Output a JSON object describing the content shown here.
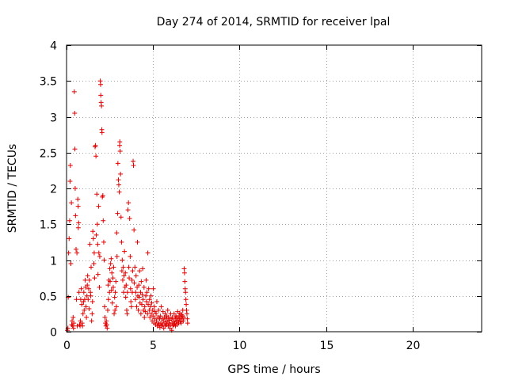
{
  "chart_data": {
    "type": "scatter",
    "title": "Day 274 of 2014, SRMTID for receiver lpal",
    "xlabel": "GPS time / hours",
    "ylabel": "SRMTID / TECUs",
    "xlim": [
      0,
      24
    ],
    "ylim": [
      0,
      4
    ],
    "xticks": [
      0,
      5,
      10,
      15,
      20
    ],
    "xtick_labels": [
      "0",
      "5",
      "10",
      "15",
      "20"
    ],
    "yticks": [
      0,
      0.5,
      1,
      1.5,
      2,
      2.5,
      3,
      3.5,
      4
    ],
    "ytick_labels": [
      "0",
      "0.5",
      "1",
      "1.5",
      "2",
      "2.5",
      "3",
      "3.5",
      "4"
    ],
    "grid": true,
    "marker": "+",
    "series": [
      {
        "name": "SRMTID",
        "color": "#e00000",
        "points": [
          [
            0.05,
            0.02
          ],
          [
            0.08,
            0.05
          ],
          [
            0.1,
            0.48
          ],
          [
            0.12,
            1.1
          ],
          [
            0.15,
            1.3
          ],
          [
            0.18,
            1.55
          ],
          [
            0.2,
            2.1
          ],
          [
            0.22,
            2.32
          ],
          [
            0.25,
            0.95
          ],
          [
            0.28,
            1.8
          ],
          [
            0.3,
            0.1
          ],
          [
            0.32,
            0.15
          ],
          [
            0.35,
            0.08
          ],
          [
            0.38,
            0.2
          ],
          [
            0.4,
            0.05
          ],
          [
            0.42,
            0.12
          ],
          [
            0.45,
            3.35
          ],
          [
            0.47,
            3.05
          ],
          [
            0.48,
            2.55
          ],
          [
            0.5,
            2.0
          ],
          [
            0.52,
            1.62
          ],
          [
            0.55,
            1.15
          ],
          [
            0.57,
            0.45
          ],
          [
            0.6,
            1.1
          ],
          [
            0.62,
            0.08
          ],
          [
            0.65,
            1.85
          ],
          [
            0.67,
            1.75
          ],
          [
            0.68,
            1.45
          ],
          [
            0.7,
            1.52
          ],
          [
            0.72,
            0.55
          ],
          [
            0.75,
            0.1
          ],
          [
            0.78,
            0.08
          ],
          [
            0.8,
            0.15
          ],
          [
            0.82,
            0.45
          ],
          [
            0.85,
            0.6
          ],
          [
            0.88,
            0.38
          ],
          [
            0.9,
            0.12
          ],
          [
            0.92,
            0.08
          ],
          [
            0.95,
            0.25
          ],
          [
            0.98,
            0.42
          ],
          [
            1.0,
            0.55
          ],
          [
            1.02,
            0.3
          ],
          [
            1.05,
            0.45
          ],
          [
            1.08,
            0.72
          ],
          [
            1.1,
            0.62
          ],
          [
            1.12,
            0.35
          ],
          [
            1.15,
            0.2
          ],
          [
            1.18,
            0.5
          ],
          [
            1.2,
            0.65
          ],
          [
            1.22,
            0.78
          ],
          [
            1.25,
            0.45
          ],
          [
            1.28,
            0.6
          ],
          [
            1.3,
            0.32
          ],
          [
            1.32,
            0.72
          ],
          [
            1.35,
            1.22
          ],
          [
            1.38,
            0.55
          ],
          [
            1.4,
            0.5
          ],
          [
            1.42,
            0.9
          ],
          [
            1.45,
            0.15
          ],
          [
            1.48,
            0.25
          ],
          [
            1.5,
            0.42
          ],
          [
            1.52,
            1.4
          ],
          [
            1.55,
            1.3
          ],
          [
            1.58,
            0.95
          ],
          [
            1.6,
            1.1
          ],
          [
            1.62,
            0.75
          ],
          [
            1.65,
            2.58
          ],
          [
            1.67,
            2.6
          ],
          [
            1.7,
            2.45
          ],
          [
            1.72,
            1.35
          ],
          [
            1.75,
            1.92
          ],
          [
            1.78,
            1.5
          ],
          [
            1.8,
            1.22
          ],
          [
            1.82,
            0.8
          ],
          [
            1.85,
            1.75
          ],
          [
            1.87,
            1.1
          ],
          [
            1.9,
            0.62
          ],
          [
            1.92,
            1.05
          ],
          [
            1.95,
            3.5
          ],
          [
            1.97,
            3.45
          ],
          [
            1.98,
            3.3
          ],
          [
            2.0,
            3.2
          ],
          [
            2.02,
            3.15
          ],
          [
            2.04,
            2.82
          ],
          [
            2.05,
            2.78
          ],
          [
            2.07,
            1.88
          ],
          [
            2.1,
            1.9
          ],
          [
            2.12,
            1.55
          ],
          [
            2.15,
            1.25
          ],
          [
            2.18,
            1.0
          ],
          [
            2.2,
            0.35
          ],
          [
            2.22,
            0.2
          ],
          [
            2.25,
            0.12
          ],
          [
            2.28,
            0.08
          ],
          [
            2.3,
            0.15
          ],
          [
            2.32,
            0.1
          ],
          [
            2.35,
            0.05
          ],
          [
            2.38,
            0.3
          ],
          [
            2.4,
            0.65
          ],
          [
            2.42,
            0.45
          ],
          [
            2.45,
            0.72
          ],
          [
            2.48,
            0.55
          ],
          [
            2.5,
            0.88
          ],
          [
            2.52,
            0.7
          ],
          [
            2.55,
            0.95
          ],
          [
            2.58,
            1.02
          ],
          [
            2.6,
            0.58
          ],
          [
            2.62,
            0.82
          ],
          [
            2.65,
            0.4
          ],
          [
            2.68,
            0.75
          ],
          [
            2.7,
            0.62
          ],
          [
            2.72,
            0.9
          ],
          [
            2.75,
            0.25
          ],
          [
            2.78,
            0.48
          ],
          [
            2.8,
            0.3
          ],
          [
            2.82,
            0.55
          ],
          [
            2.85,
            0.7
          ],
          [
            2.88,
            0.35
          ],
          [
            2.9,
            1.38
          ],
          [
            2.92,
            1.05
          ],
          [
            2.95,
            1.65
          ],
          [
            2.97,
            2.35
          ],
          [
            3.0,
            2.12
          ],
          [
            3.02,
            2.05
          ],
          [
            3.05,
            1.95
          ],
          [
            3.07,
            2.6
          ],
          [
            3.08,
            2.65
          ],
          [
            3.1,
            2.52
          ],
          [
            3.12,
            2.2
          ],
          [
            3.15,
            1.6
          ],
          [
            3.18,
            1.25
          ],
          [
            3.2,
            0.85
          ],
          [
            3.22,
            1.0
          ],
          [
            3.25,
            0.72
          ],
          [
            3.28,
            0.9
          ],
          [
            3.3,
            0.55
          ],
          [
            3.32,
            0.78
          ],
          [
            3.35,
            1.12
          ],
          [
            3.38,
            0.62
          ],
          [
            3.4,
            0.82
          ],
          [
            3.42,
            0.48
          ],
          [
            3.45,
            0.65
          ],
          [
            3.48,
            0.3
          ],
          [
            3.5,
            0.25
          ],
          [
            3.52,
            0.55
          ],
          [
            3.55,
            1.7
          ],
          [
            3.58,
            1.8
          ],
          [
            3.6,
            0.9
          ],
          [
            3.62,
            0.75
          ],
          [
            3.65,
            1.58
          ],
          [
            3.68,
            1.05
          ],
          [
            3.7,
            0.6
          ],
          [
            3.72,
            0.42
          ],
          [
            3.75,
            0.35
          ],
          [
            3.78,
            0.72
          ],
          [
            3.8,
            0.55
          ],
          [
            3.82,
            0.85
          ],
          [
            3.85,
            2.38
          ],
          [
            3.87,
            2.32
          ],
          [
            3.9,
            1.42
          ],
          [
            3.92,
            0.68
          ],
          [
            3.95,
            0.9
          ],
          [
            3.98,
            0.45
          ],
          [
            4.0,
            0.55
          ],
          [
            4.02,
            0.78
          ],
          [
            4.05,
            0.35
          ],
          [
            4.08,
            0.62
          ],
          [
            4.1,
            1.25
          ],
          [
            4.12,
            0.5
          ],
          [
            4.15,
            0.3
          ],
          [
            4.18,
            0.65
          ],
          [
            4.2,
            0.48
          ],
          [
            4.22,
            0.85
          ],
          [
            4.25,
            0.4
          ],
          [
            4.28,
            0.55
          ],
          [
            4.3,
            0.25
          ],
          [
            4.32,
            0.7
          ],
          [
            4.35,
            0.38
          ],
          [
            4.38,
            0.52
          ],
          [
            4.4,
            0.88
          ],
          [
            4.42,
            0.45
          ],
          [
            4.45,
            0.3
          ],
          [
            4.48,
            0.62
          ],
          [
            4.5,
            0.2
          ],
          [
            4.52,
            0.35
          ],
          [
            4.55,
            0.28
          ],
          [
            4.58,
            0.5
          ],
          [
            4.6,
            0.72
          ],
          [
            4.62,
            0.42
          ],
          [
            4.65,
            0.55
          ],
          [
            4.68,
            0.25
          ],
          [
            4.7,
            1.1
          ],
          [
            4.72,
            0.38
          ],
          [
            4.75,
            0.6
          ],
          [
            4.78,
            0.3
          ],
          [
            4.8,
            0.45
          ],
          [
            4.82,
            0.2
          ],
          [
            4.85,
            0.35
          ],
          [
            4.88,
            0.5
          ],
          [
            4.9,
            0.25
          ],
          [
            4.92,
            0.4
          ],
          [
            4.95,
            0.15
          ],
          [
            4.98,
            0.3
          ],
          [
            5.0,
            0.22
          ],
          [
            5.02,
            0.6
          ],
          [
            5.05,
            0.12
          ],
          [
            5.08,
            0.35
          ],
          [
            5.1,
            0.18
          ],
          [
            5.12,
            0.28
          ],
          [
            5.15,
            0.1
          ],
          [
            5.18,
            0.25
          ],
          [
            5.2,
            0.15
          ],
          [
            5.22,
            0.42
          ],
          [
            5.25,
            0.08
          ],
          [
            5.28,
            0.2
          ],
          [
            5.3,
            0.12
          ],
          [
            5.32,
            0.3
          ],
          [
            5.35,
            0.1
          ],
          [
            5.38,
            0.18
          ],
          [
            5.4,
            0.06
          ],
          [
            5.42,
            0.22
          ],
          [
            5.45,
            0.12
          ],
          [
            5.48,
            0.35
          ],
          [
            5.5,
            0.08
          ],
          [
            5.52,
            0.18
          ],
          [
            5.55,
            0.1
          ],
          [
            5.58,
            0.28
          ],
          [
            5.6,
            0.15
          ],
          [
            5.62,
            0.05
          ],
          [
            5.65,
            0.2
          ],
          [
            5.68,
            0.12
          ],
          [
            5.7,
            0.25
          ],
          [
            5.72,
            0.08
          ],
          [
            5.75,
            0.18
          ],
          [
            5.78,
            0.1
          ],
          [
            5.8,
            0.22
          ],
          [
            5.82,
            0.14
          ],
          [
            5.85,
            0.3
          ],
          [
            5.88,
            0.08
          ],
          [
            5.9,
            0.2
          ],
          [
            5.92,
            0.12
          ],
          [
            5.95,
            0.16
          ],
          [
            5.98,
            0.05
          ],
          [
            6.0,
            0.1
          ],
          [
            6.02,
            0.25
          ],
          [
            6.05,
            0.18
          ],
          [
            6.08,
            0.02
          ],
          [
            6.1,
            0.12
          ],
          [
            6.12,
            0.2
          ],
          [
            6.15,
            0.08
          ],
          [
            6.18,
            0.15
          ],
          [
            6.2,
            0.1
          ],
          [
            6.22,
            0.25
          ],
          [
            6.25,
            0.12
          ],
          [
            6.28,
            0.18
          ],
          [
            6.3,
            0.08
          ],
          [
            6.32,
            0.22
          ],
          [
            6.35,
            0.14
          ],
          [
            6.38,
            0.2
          ],
          [
            6.4,
            0.1
          ],
          [
            6.42,
            0.28
          ],
          [
            6.45,
            0.16
          ],
          [
            6.48,
            0.12
          ],
          [
            6.5,
            0.22
          ],
          [
            6.52,
            0.18
          ],
          [
            6.55,
            0.26
          ],
          [
            6.58,
            0.14
          ],
          [
            6.6,
            0.2
          ],
          [
            6.62,
            0.12
          ],
          [
            6.65,
            0.24
          ],
          [
            6.68,
            0.18
          ],
          [
            6.7,
            0.22
          ],
          [
            6.72,
            0.3
          ],
          [
            6.75,
            0.15
          ],
          [
            6.78,
            0.2
          ],
          [
            6.8,
            0.88
          ],
          [
            6.82,
            0.82
          ],
          [
            6.84,
            0.7
          ],
          [
            6.86,
            0.6
          ],
          [
            6.88,
            0.55
          ],
          [
            6.9,
            0.45
          ],
          [
            6.92,
            0.38
          ],
          [
            6.94,
            0.3
          ],
          [
            6.96,
            0.25
          ],
          [
            6.98,
            0.18
          ],
          [
            7.0,
            0.12
          ]
        ]
      }
    ]
  }
}
